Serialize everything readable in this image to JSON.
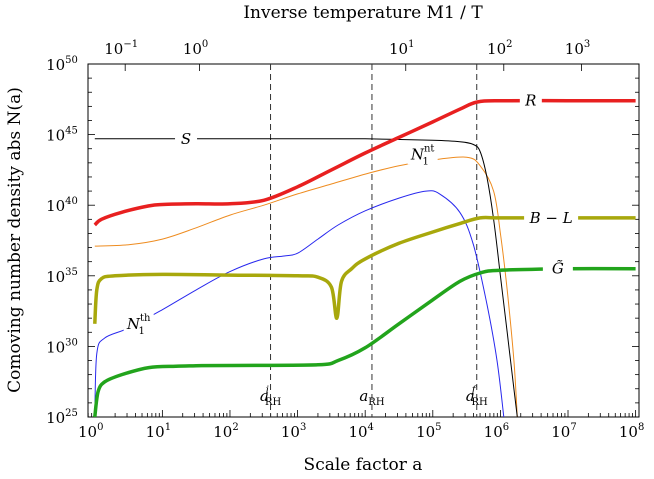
{
  "chart_data": {
    "type": "line",
    "title": "",
    "xlabel": "Scale factor  a",
    "ylabel": "Comoving number density  abs N(a)",
    "top_axis_label": "Inverse temperature  M1 / T",
    "x_scale": "log",
    "y_scale": "log",
    "xlim_log10": [
      -0.1,
      8.05
    ],
    "ylim_log10": [
      25,
      50
    ],
    "x_ticks": [
      {
        "exp": "0",
        "value": 0
      },
      {
        "exp": "1",
        "value": 1
      },
      {
        "exp": "2",
        "value": 2
      },
      {
        "exp": "3",
        "value": 3
      },
      {
        "exp": "4",
        "value": 4
      },
      {
        "exp": "5",
        "value": 5
      },
      {
        "exp": "6",
        "value": 6
      },
      {
        "exp": "7",
        "value": 7
      },
      {
        "exp": "8",
        "value": 8
      }
    ],
    "y_ticks": [
      {
        "exp": "25",
        "value": 25
      },
      {
        "exp": "30",
        "value": 30
      },
      {
        "exp": "35",
        "value": 35
      },
      {
        "exp": "40",
        "value": 40
      },
      {
        "exp": "45",
        "value": 45
      },
      {
        "exp": "50",
        "value": 50
      }
    ],
    "top_ticks": [
      {
        "exp": "−1",
        "x_log10": 0.45
      },
      {
        "exp": "0",
        "x_log10": 1.55
      },
      {
        "exp": "1",
        "x_log10": 4.6
      },
      {
        "exp": "2",
        "x_log10": 6.05
      },
      {
        "exp": "3",
        "x_log10": 7.2
      }
    ],
    "tick_base": "10",
    "vlines": [
      {
        "name": "a_RH_i",
        "x_log10": 2.6,
        "label": "a",
        "sub": "RH",
        "sup": "i"
      },
      {
        "name": "a_RH",
        "x_log10": 4.1,
        "label": "a",
        "sub": "RH",
        "sup": ""
      },
      {
        "name": "a_RH_f",
        "x_log10": 5.65,
        "label": "a",
        "sub": "RH",
        "sup": "f"
      }
    ],
    "series": [
      {
        "name": "S",
        "label": "S",
        "label_sub": "",
        "label_sup": "",
        "color": "#000000",
        "width": 1,
        "points": [
          [
            0,
            44.7
          ],
          [
            1,
            44.7
          ],
          [
            2,
            44.7
          ],
          [
            3,
            44.7
          ],
          [
            4,
            44.7
          ],
          [
            5,
            44.6
          ],
          [
            5.4,
            44.5
          ],
          [
            5.6,
            44.3
          ],
          [
            5.7,
            43.8
          ],
          [
            5.8,
            42
          ],
          [
            5.9,
            39
          ],
          [
            6,
            35
          ],
          [
            6.1,
            31
          ],
          [
            6.2,
            27
          ],
          [
            6.25,
            25
          ]
        ]
      },
      {
        "name": "R",
        "label": "R",
        "label_sub": "",
        "label_sup": "",
        "color": "#e82020",
        "width": 3.5,
        "points": [
          [
            0,
            38.6
          ],
          [
            0.1,
            39.0
          ],
          [
            0.4,
            39.5
          ],
          [
            0.8,
            39.95
          ],
          [
            1,
            40.05
          ],
          [
            1.5,
            40.1
          ],
          [
            2,
            40.1
          ],
          [
            2.5,
            40.35
          ],
          [
            3,
            41.3
          ],
          [
            3.5,
            42.5
          ],
          [
            4,
            43.7
          ],
          [
            4.5,
            44.8
          ],
          [
            5,
            45.9
          ],
          [
            5.4,
            46.8
          ],
          [
            5.65,
            47.3
          ],
          [
            6,
            47.4
          ],
          [
            7,
            47.4
          ],
          [
            8,
            47.4
          ]
        ]
      },
      {
        "name": "N1nt",
        "label": "N",
        "label_sub": "1",
        "label_sup": "nt",
        "color": "#ee8c20",
        "width": 1,
        "points": [
          [
            0,
            37.1
          ],
          [
            0.5,
            37.2
          ],
          [
            1,
            37.6
          ],
          [
            1.5,
            38.4
          ],
          [
            2,
            39.3
          ],
          [
            2.5,
            40.0
          ],
          [
            3,
            40.8
          ],
          [
            3.5,
            41.5
          ],
          [
            4,
            42.2
          ],
          [
            4.5,
            42.8
          ],
          [
            5,
            43.2
          ],
          [
            5.5,
            43.4
          ],
          [
            5.7,
            42.8
          ],
          [
            5.9,
            41
          ],
          [
            6.0,
            38
          ],
          [
            6.1,
            34
          ],
          [
            6.2,
            29
          ],
          [
            6.25,
            25
          ]
        ]
      },
      {
        "name": "BL",
        "label": "B − L",
        "label_sub": "",
        "label_sup": "",
        "color": "#a8a80c",
        "width": 3.5,
        "points": [
          [
            0,
            31.6
          ],
          [
            0.03,
            34
          ],
          [
            0.1,
            34.8
          ],
          [
            0.3,
            35.0
          ],
          [
            1,
            35.1
          ],
          [
            2,
            35.05
          ],
          [
            3,
            35.0
          ],
          [
            3.3,
            34.9
          ],
          [
            3.5,
            34.2
          ],
          [
            3.58,
            32.0
          ],
          [
            3.65,
            34.6
          ],
          [
            3.8,
            35.5
          ],
          [
            4,
            36.2
          ],
          [
            4.5,
            37.3
          ],
          [
            5,
            38.1
          ],
          [
            5.4,
            38.7
          ],
          [
            5.7,
            39.1
          ],
          [
            6,
            39.1
          ],
          [
            7,
            39.1
          ],
          [
            8,
            39.1
          ]
        ]
      },
      {
        "name": "Gtilde",
        "label": "G̃",
        "label_sub": "",
        "label_sup": "",
        "color": "#22a41c",
        "width": 3.5,
        "points": [
          [
            0,
            25
          ],
          [
            0.05,
            26.8
          ],
          [
            0.15,
            27.5
          ],
          [
            0.4,
            28
          ],
          [
            0.8,
            28.5
          ],
          [
            1.2,
            28.6
          ],
          [
            1.5,
            28.63
          ],
          [
            2,
            28.65
          ],
          [
            3.3,
            28.7
          ],
          [
            3.6,
            29.0
          ],
          [
            4,
            29.9
          ],
          [
            4.5,
            31.6
          ],
          [
            5,
            33.3
          ],
          [
            5.4,
            34.6
          ],
          [
            5.7,
            35.2
          ],
          [
            6,
            35.4
          ],
          [
            7,
            35.5
          ],
          [
            8,
            35.5
          ]
        ]
      },
      {
        "name": "N1th",
        "label": "N",
        "label_sub": "1",
        "label_sup": "th",
        "color": "#2828ee",
        "width": 1,
        "points": [
          [
            0,
            25
          ],
          [
            0.03,
            29.5
          ],
          [
            0.15,
            30.6
          ],
          [
            0.5,
            31.3
          ],
          [
            1,
            32.6
          ],
          [
            1.5,
            34.0
          ],
          [
            2,
            35.3
          ],
          [
            2.5,
            36.2
          ],
          [
            2.8,
            36.4
          ],
          [
            3,
            36.6
          ],
          [
            3.3,
            37.6
          ],
          [
            3.6,
            38.6
          ],
          [
            4,
            39.6
          ],
          [
            4.5,
            40.5
          ],
          [
            4.9,
            41.0
          ],
          [
            5.1,
            40.8
          ],
          [
            5.4,
            39.5
          ],
          [
            5.6,
            37.2
          ],
          [
            5.8,
            33
          ],
          [
            5.95,
            29
          ],
          [
            6.05,
            25
          ]
        ]
      }
    ],
    "labels": [
      {
        "series": "S",
        "x_log10": 1.35,
        "y_log10": 44.7,
        "anchor": "middle"
      },
      {
        "series": "R",
        "x_log10": 6.45,
        "y_log10": 47.4,
        "anchor": "middle"
      },
      {
        "series": "N1nt",
        "x_log10": 4.85,
        "y_log10": 43.6,
        "anchor": "middle"
      },
      {
        "series": "BL",
        "x_log10": 6.75,
        "y_log10": 39.1,
        "anchor": "middle"
      },
      {
        "series": "Gtilde",
        "x_log10": 6.85,
        "y_log10": 35.5,
        "anchor": "middle"
      },
      {
        "series": "N1th",
        "x_log10": 0.65,
        "y_log10": 31.6,
        "anchor": "middle"
      }
    ]
  }
}
